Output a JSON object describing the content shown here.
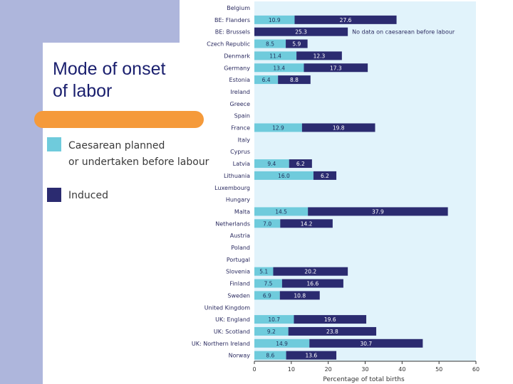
{
  "slide": {
    "title": "Mode of onset\nof labor"
  },
  "colors": {
    "planned": "#6fcbdc",
    "induced": "#2b2b70",
    "plot_bg": "#e1f3fb",
    "left_band": "#aeb6dc",
    "accent_orange": "#f59a3a"
  },
  "legend": {
    "planned_label": "Caesarean planned\nor undertaken before labour",
    "induced_label": "Induced"
  },
  "chart_data": {
    "type": "bar",
    "orientation": "horizontal",
    "stacked": true,
    "xlabel": "Percentage of total births",
    "xlim": [
      0,
      60
    ],
    "xticks": [
      0,
      10,
      20,
      30,
      40,
      50,
      60
    ],
    "categories": [
      "Belgium",
      "BE: Flanders",
      "BE: Brussels",
      "Czech Republic",
      "Denmark",
      "Germany",
      "Estonia",
      "Ireland",
      "Greece",
      "Spain",
      "France",
      "Italy",
      "Cyprus",
      "Latvia",
      "Lithuania",
      "Luxembourg",
      "Hungary",
      "Malta",
      "Netherlands",
      "Austria",
      "Poland",
      "Portugal",
      "Slovenia",
      "Finland",
      "Sweden",
      "United Kingdom",
      "UK: England",
      "UK: Scotland",
      "UK: Northern Ireland",
      "Norway"
    ],
    "series": [
      {
        "name": "Caesarean planned or undertaken before labour",
        "values": [
          null,
          10.9,
          null,
          8.5,
          11.4,
          13.4,
          6.4,
          null,
          null,
          null,
          12.9,
          null,
          null,
          9.4,
          16.0,
          null,
          null,
          14.5,
          7.0,
          null,
          null,
          null,
          5.1,
          7.5,
          6.9,
          null,
          10.7,
          9.2,
          14.9,
          8.6
        ]
      },
      {
        "name": "Induced",
        "values": [
          null,
          27.6,
          25.3,
          5.9,
          12.3,
          17.3,
          8.8,
          null,
          null,
          null,
          19.8,
          null,
          null,
          6.2,
          6.2,
          null,
          null,
          37.9,
          14.2,
          null,
          null,
          null,
          20.2,
          16.6,
          10.8,
          null,
          19.6,
          23.8,
          30.7,
          13.6
        ]
      }
    ],
    "annotations": [
      {
        "category": "BE: Brussels",
        "text": "No data on caesarean before labour"
      }
    ],
    "grid": false
  }
}
